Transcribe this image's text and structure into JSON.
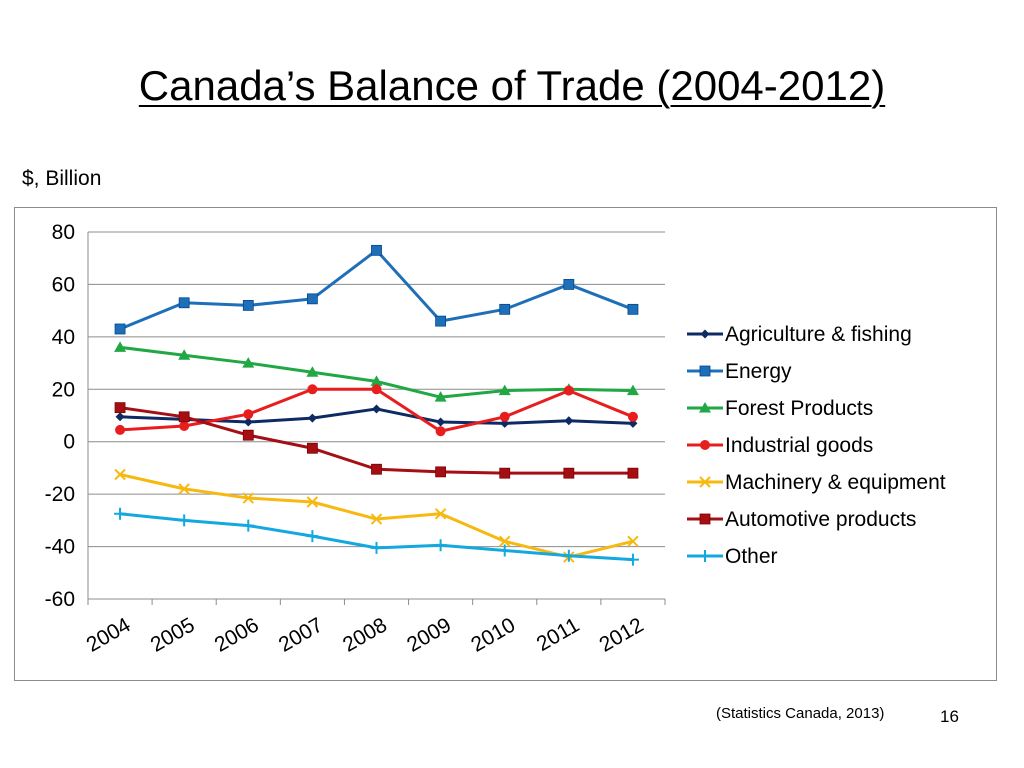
{
  "slide": {
    "title": "Canada’s Balance of Trade (2004-2012)",
    "units_label": "$, Billion",
    "source_note": "(Statistics Canada, 2013)",
    "page_number": "16"
  },
  "chart_data": {
    "type": "line",
    "title": "",
    "xlabel": "",
    "ylabel": "$, Billion",
    "categories": [
      "2004",
      "2005",
      "2006",
      "2007",
      "2008",
      "2009",
      "2010",
      "2011",
      "2012"
    ],
    "ylim": [
      -60,
      80
    ],
    "yticks": [
      "80",
      "60",
      "40",
      "20",
      "0",
      "-20",
      "-40",
      "-60"
    ],
    "grid": "horizontal",
    "legend_position": "right",
    "series": [
      {
        "name": "Agriculture & fishing",
        "color": "#0d2a63",
        "marker": "diamond",
        "values": [
          9.5,
          8.5,
          7.5,
          9,
          12.5,
          7.5,
          7,
          8,
          7
        ]
      },
      {
        "name": "Energy",
        "color": "#1f6fb8",
        "marker": "square",
        "values": [
          43,
          53,
          52,
          54.5,
          73,
          46,
          50.5,
          60,
          50.5
        ]
      },
      {
        "name": "Forest Products",
        "color": "#22a745",
        "marker": "triangle",
        "values": [
          36,
          33,
          30,
          26.5,
          23,
          17,
          19.5,
          20,
          19.5
        ]
      },
      {
        "name": "Industrial goods",
        "color": "#e81e1e",
        "marker": "circle",
        "values": [
          4.5,
          6,
          10.5,
          20,
          20,
          4,
          9.5,
          19.5,
          9.5
        ]
      },
      {
        "name": "Machinery & equipment",
        "color": "#f7b90f",
        "marker": "x",
        "values": [
          -12.5,
          -18,
          -21.5,
          -23,
          -29.5,
          -27.5,
          -38,
          -44,
          -38
        ]
      },
      {
        "name": "Automotive products",
        "color": "#a50f14",
        "marker": "square",
        "values": [
          13,
          9.5,
          2.5,
          -2.5,
          -10.5,
          -11.5,
          -12,
          -12,
          -12
        ]
      },
      {
        "name": "Other",
        "color": "#13a8e0",
        "marker": "plus",
        "values": [
          -27.5,
          -30,
          -32,
          -36,
          -40.5,
          -39.5,
          -41.5,
          -43.5,
          -45
        ]
      }
    ]
  }
}
